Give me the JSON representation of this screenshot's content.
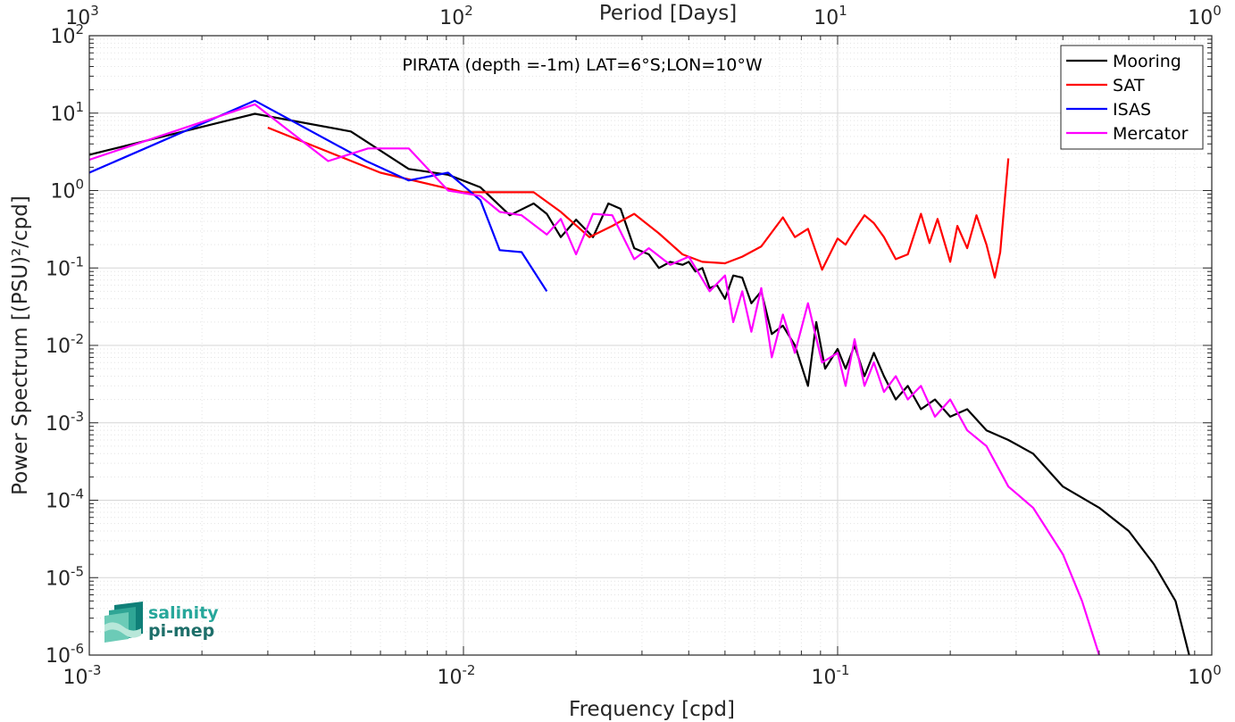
{
  "chart_data": {
    "type": "line",
    "title": "PIRATA (depth =-1m) LAT=6°S;LON=10°W",
    "xlabel": "Frequency [cpd]",
    "ylabel": "Power Spectrum [(PSU)²/cpd]",
    "top_xlabel": "Period [Days]",
    "xscale": "log",
    "yscale": "log",
    "xlim": [
      0.001,
      1
    ],
    "ylim": [
      1e-06,
      100
    ],
    "grid": true,
    "legend_position": "top-right",
    "x_ticks": [
      {
        "base": "10",
        "exp": "-3"
      },
      {
        "base": "10",
        "exp": "-2"
      },
      {
        "base": "10",
        "exp": "-1"
      },
      {
        "base": "10",
        "exp": "0"
      }
    ],
    "top_ticks": [
      {
        "base": "10",
        "exp": "3"
      },
      {
        "base": "10",
        "exp": "2"
      },
      {
        "base": "10",
        "exp": "1"
      },
      {
        "base": "10",
        "exp": "0"
      }
    ],
    "y_ticks": [
      {
        "base": "10",
        "exp": "2"
      },
      {
        "base": "10",
        "exp": "1"
      },
      {
        "base": "10",
        "exp": "0"
      },
      {
        "base": "10",
        "exp": "-1"
      },
      {
        "base": "10",
        "exp": "-2"
      },
      {
        "base": "10",
        "exp": "-3"
      },
      {
        "base": "10",
        "exp": "-4"
      },
      {
        "base": "10",
        "exp": "-5"
      },
      {
        "base": "10",
        "exp": "-6"
      }
    ],
    "series": [
      {
        "name": "Mooring",
        "color": "#000000",
        "points": [
          [
            0.001,
            2.9
          ],
          [
            0.00277,
            9.8
          ],
          [
            0.005,
            5.8
          ],
          [
            0.00714,
            1.9
          ],
          [
            0.0091,
            1.6
          ],
          [
            0.0111,
            1.1
          ],
          [
            0.0133,
            0.48
          ],
          [
            0.0154,
            0.68
          ],
          [
            0.0167,
            0.5
          ],
          [
            0.0182,
            0.25
          ],
          [
            0.02,
            0.42
          ],
          [
            0.0222,
            0.25
          ],
          [
            0.0244,
            0.68
          ],
          [
            0.0263,
            0.58
          ],
          [
            0.0286,
            0.18
          ],
          [
            0.0313,
            0.15
          ],
          [
            0.0333,
            0.1
          ],
          [
            0.0357,
            0.12
          ],
          [
            0.0385,
            0.11
          ],
          [
            0.04,
            0.12
          ],
          [
            0.0417,
            0.09
          ],
          [
            0.0435,
            0.1
          ],
          [
            0.0455,
            0.055
          ],
          [
            0.0476,
            0.06
          ],
          [
            0.05,
            0.04
          ],
          [
            0.0526,
            0.08
          ],
          [
            0.0556,
            0.075
          ],
          [
            0.0588,
            0.035
          ],
          [
            0.0625,
            0.05
          ],
          [
            0.0667,
            0.014
          ],
          [
            0.0714,
            0.018
          ],
          [
            0.0769,
            0.01
          ],
          [
            0.0833,
            0.003
          ],
          [
            0.0877,
            0.02
          ],
          [
            0.0926,
            0.005
          ],
          [
            0.1,
            0.009
          ],
          [
            0.105,
            0.005
          ],
          [
            0.111,
            0.01
          ],
          [
            0.118,
            0.004
          ],
          [
            0.125,
            0.008
          ],
          [
            0.133,
            0.004
          ],
          [
            0.143,
            0.002
          ],
          [
            0.154,
            0.003
          ],
          [
            0.167,
            0.0015
          ],
          [
            0.182,
            0.002
          ],
          [
            0.2,
            0.0012
          ],
          [
            0.222,
            0.0015
          ],
          [
            0.25,
            0.0008
          ],
          [
            0.286,
            0.0006
          ],
          [
            0.333,
            0.0004
          ],
          [
            0.4,
            0.00015
          ],
          [
            0.5,
            8e-05
          ],
          [
            0.6,
            4e-05
          ],
          [
            0.7,
            1.5e-05
          ],
          [
            0.8,
            5e-06
          ],
          [
            0.87,
            1e-06
          ]
        ]
      },
      {
        "name": "SAT",
        "color": "#ff0000",
        "points": [
          [
            0.003,
            6.5
          ],
          [
            0.006,
            1.7
          ],
          [
            0.01,
            0.95
          ],
          [
            0.0154,
            0.95
          ],
          [
            0.0182,
            0.53
          ],
          [
            0.0217,
            0.25
          ],
          [
            0.025,
            0.35
          ],
          [
            0.0286,
            0.5
          ],
          [
            0.0333,
            0.28
          ],
          [
            0.0385,
            0.15
          ],
          [
            0.0435,
            0.12
          ],
          [
            0.05,
            0.115
          ],
          [
            0.0556,
            0.14
          ],
          [
            0.0625,
            0.19
          ],
          [
            0.0714,
            0.45
          ],
          [
            0.0769,
            0.25
          ],
          [
            0.0833,
            0.32
          ],
          [
            0.0909,
            0.095
          ],
          [
            0.1,
            0.24
          ],
          [
            0.105,
            0.2
          ],
          [
            0.111,
            0.31
          ],
          [
            0.118,
            0.48
          ],
          [
            0.125,
            0.38
          ],
          [
            0.133,
            0.25
          ],
          [
            0.143,
            0.13
          ],
          [
            0.154,
            0.15
          ],
          [
            0.167,
            0.5
          ],
          [
            0.176,
            0.21
          ],
          [
            0.185,
            0.43
          ],
          [
            0.2,
            0.12
          ],
          [
            0.209,
            0.35
          ],
          [
            0.222,
            0.18
          ],
          [
            0.235,
            0.48
          ],
          [
            0.25,
            0.2
          ],
          [
            0.263,
            0.075
          ],
          [
            0.272,
            0.16
          ],
          [
            0.286,
            2.6
          ]
        ]
      },
      {
        "name": "ISAS",
        "color": "#0000ff",
        "points": [
          [
            0.001,
            1.7
          ],
          [
            0.00277,
            14.5
          ],
          [
            0.0055,
            2.4
          ],
          [
            0.00714,
            1.35
          ],
          [
            0.0091,
            1.7
          ],
          [
            0.0111,
            0.75
          ],
          [
            0.0125,
            0.17
          ],
          [
            0.0143,
            0.16
          ],
          [
            0.0167,
            0.05
          ]
        ]
      },
      {
        "name": "Mercator",
        "color": "#ff00ff",
        "points": [
          [
            0.001,
            2.5
          ],
          [
            0.00277,
            13.0
          ],
          [
            0.00435,
            2.4
          ],
          [
            0.00556,
            3.5
          ],
          [
            0.00714,
            3.5
          ],
          [
            0.0091,
            1.0
          ],
          [
            0.0111,
            0.85
          ],
          [
            0.0125,
            0.53
          ],
          [
            0.0143,
            0.48
          ],
          [
            0.0167,
            0.27
          ],
          [
            0.0182,
            0.43
          ],
          [
            0.02,
            0.15
          ],
          [
            0.0222,
            0.5
          ],
          [
            0.025,
            0.48
          ],
          [
            0.0286,
            0.13
          ],
          [
            0.0313,
            0.18
          ],
          [
            0.0357,
            0.11
          ],
          [
            0.04,
            0.14
          ],
          [
            0.0455,
            0.05
          ],
          [
            0.05,
            0.08
          ],
          [
            0.0526,
            0.02
          ],
          [
            0.0556,
            0.05
          ],
          [
            0.0588,
            0.015
          ],
          [
            0.0625,
            0.055
          ],
          [
            0.0667,
            0.007
          ],
          [
            0.0714,
            0.025
          ],
          [
            0.0769,
            0.008
          ],
          [
            0.0833,
            0.035
          ],
          [
            0.0909,
            0.006
          ],
          [
            0.1,
            0.008
          ],
          [
            0.105,
            0.003
          ],
          [
            0.111,
            0.012
          ],
          [
            0.118,
            0.003
          ],
          [
            0.125,
            0.006
          ],
          [
            0.133,
            0.0025
          ],
          [
            0.143,
            0.004
          ],
          [
            0.154,
            0.002
          ],
          [
            0.167,
            0.003
          ],
          [
            0.182,
            0.0012
          ],
          [
            0.2,
            0.002
          ],
          [
            0.222,
            0.0008
          ],
          [
            0.25,
            0.0005
          ],
          [
            0.286,
            0.00015
          ],
          [
            0.333,
            8e-05
          ],
          [
            0.4,
            2e-05
          ],
          [
            0.45,
            5e-06
          ],
          [
            0.5,
            1e-06
          ]
        ]
      }
    ]
  },
  "logo": {
    "line1": "salinity",
    "line2": "pi-mep"
  }
}
